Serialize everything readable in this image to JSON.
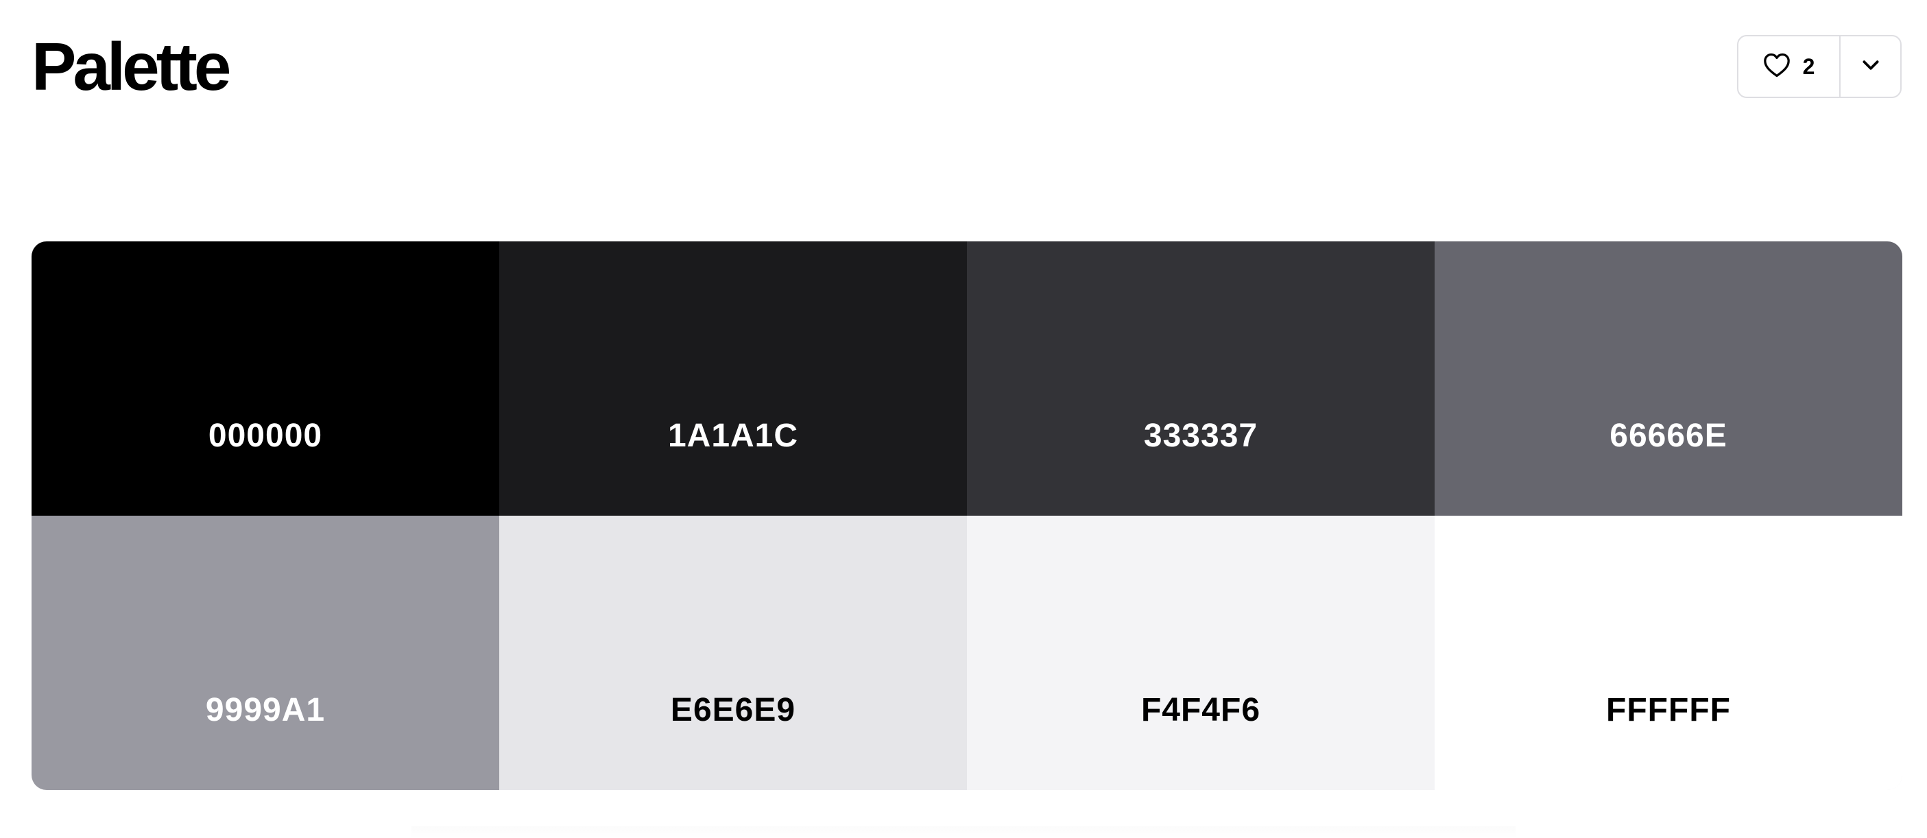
{
  "header": {
    "title": "Palette",
    "likes": "2",
    "like_icon": "heart-outline-icon",
    "menu_icon": "chevron-down-icon"
  },
  "palette": {
    "swatches": [
      {
        "hex": "000000",
        "color": "#000000",
        "text_color": "#ffffff"
      },
      {
        "hex": "1A1A1C",
        "color": "#1A1A1C",
        "text_color": "#ffffff"
      },
      {
        "hex": "333337",
        "color": "#333337",
        "text_color": "#ffffff"
      },
      {
        "hex": "66666E",
        "color": "#66666E",
        "text_color": "#ffffff"
      },
      {
        "hex": "9999A1",
        "color": "#9999A1",
        "text_color": "#ffffff"
      },
      {
        "hex": "E6E6E9",
        "color": "#E6E6E9",
        "text_color": "#000000"
      },
      {
        "hex": "F4F4F6",
        "color": "#F4F4F6",
        "text_color": "#000000"
      },
      {
        "hex": "FFFFFF",
        "color": "#FFFFFF",
        "text_color": "#000000"
      }
    ]
  }
}
